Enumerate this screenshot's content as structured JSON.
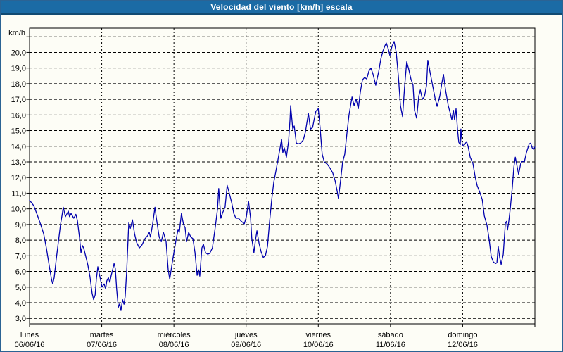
{
  "window": {
    "title": "Velocidad del viento [km/h] escala"
  },
  "colors": {
    "title_bar_bg": "#1b6ba5",
    "title_bar_edge": "#114a72",
    "window_border": "#2b6394",
    "page_bg": "#fdfdf6",
    "grid": "#000000",
    "axis": "#000000",
    "line": "#0000ad",
    "label_text": "#000000",
    "title_text": "#ffffff"
  },
  "chart_data": {
    "type": "line",
    "title": "Velocidad del viento [km/h] escala",
    "unit_label": "km/h",
    "grid": "dashed",
    "legend_position": "none",
    "ylim": [
      2.65,
      21.55
    ],
    "x_hours_max": 168,
    "yticks": [
      {
        "value": 3,
        "label": "3,0"
      },
      {
        "value": 4,
        "label": "4,0"
      },
      {
        "value": 5,
        "label": "5,0"
      },
      {
        "value": 6,
        "label": "6,0"
      },
      {
        "value": 7,
        "label": "7,0"
      },
      {
        "value": 8,
        "label": "8,0"
      },
      {
        "value": 9,
        "label": "9,0"
      },
      {
        "value": 10,
        "label": "10,0"
      },
      {
        "value": 11,
        "label": "11,0"
      },
      {
        "value": 12,
        "label": "12,0"
      },
      {
        "value": 13,
        "label": "13,0"
      },
      {
        "value": 14,
        "label": "14,0"
      },
      {
        "value": 15,
        "label": "15,0"
      },
      {
        "value": 16,
        "label": "16,0"
      },
      {
        "value": 17,
        "label": "17,0"
      },
      {
        "value": 18,
        "label": "18,0"
      },
      {
        "value": 19,
        "label": "19,0"
      },
      {
        "value": 20,
        "label": "20,0"
      },
      {
        "value": 21,
        "label": ""
      }
    ],
    "days": [
      {
        "label": "lunes",
        "date": "06/06/16"
      },
      {
        "label": "martes",
        "date": "07/06/16"
      },
      {
        "label": "miércoles",
        "date": "08/06/16"
      },
      {
        "label": "jueves",
        "date": "09/06/16"
      },
      {
        "label": "viernes",
        "date": "10/06/16"
      },
      {
        "label": "sábado",
        "date": "11/06/16"
      },
      {
        "label": "domingo",
        "date": "12/06/16"
      }
    ],
    "series": [
      {
        "name": "Velocidad del viento",
        "color": "#0000ad",
        "hours": [
          0,
          1.4,
          2.6,
          3.7,
          4.7,
          5.6,
          6.6,
          7.3,
          7.7,
          8.2,
          8.9,
          9.6,
          10.3,
          10.8,
          11.2,
          11.9,
          12.9,
          13.3,
          13.8,
          14.7,
          15.4,
          15.9,
          16.6,
          17.1,
          17.6,
          18,
          18.7,
          19.4,
          20.1,
          20.8,
          21.3,
          21.8,
          22.2,
          22.7,
          23.4,
          24.1,
          24.8,
          25.3,
          25.7,
          26.2,
          26.7,
          27.1,
          27.6,
          28.1,
          28.5,
          29,
          29.5,
          30,
          30.4,
          30.9,
          31.4,
          31.8,
          32.3,
          32.8,
          33,
          33.5,
          34.2,
          34.9,
          35.6,
          36.5,
          37.4,
          38.4,
          39.3,
          39.8,
          40.2,
          40.9,
          41.7,
          42.1,
          43.1,
          43.8,
          44.5,
          45.4,
          46.1,
          46.6,
          47.3,
          48,
          48.7,
          49.4,
          49.8,
          50.5,
          51.2,
          51.7,
          52.2,
          52.9,
          53.6,
          54.3,
          55,
          55.7,
          56.2,
          56.6,
          57.3,
          57.8,
          58.5,
          59.2,
          59.9,
          60.8,
          61.8,
          62.5,
          62.9,
          63.6,
          64.3,
          65,
          65.7,
          66.4,
          67.2,
          67.9,
          68.6,
          69.5,
          70.4,
          71.4,
          72.1,
          72.8,
          73.5,
          73.9,
          74.6,
          75.1,
          75.6,
          76.3,
          77,
          77.7,
          78.4,
          79.1,
          79.8,
          80.5,
          81.2,
          81.9,
          82.6,
          83.3,
          83.8,
          84.2,
          84.7,
          85.4,
          86.1,
          86.6,
          86.8,
          87.5,
          88,
          88.7,
          89.4,
          90.1,
          91,
          91.7,
          92.7,
          93.4,
          94.1,
          94.8,
          95.2,
          96,
          96.6,
          97.3,
          98,
          99,
          99.9,
          100.8,
          101.6,
          102.3,
          102.7,
          103.4,
          104.1,
          104.8,
          105.5,
          106.2,
          107.2,
          107.9,
          108.6,
          109.3,
          110,
          110.7,
          111.4,
          112.1,
          112.8,
          113.5,
          114.2,
          115.1,
          116.1,
          116.8,
          117.5,
          118.2,
          118.6,
          119.3,
          119.8,
          120.5,
          121.2,
          121.9,
          122.6,
          123.3,
          124,
          124.7,
          125.4,
          126.1,
          126.8,
          127.5,
          128,
          128.7,
          129.4,
          129.9,
          130.6,
          131.3,
          132,
          132.4,
          133.1,
          134.1,
          134.8,
          135.5,
          136.4,
          137.1,
          137.6,
          138.3,
          139.2,
          139.9,
          140.4,
          140.9,
          141.3,
          141.8,
          142.3,
          142.7,
          143.2,
          143.4,
          143.9,
          144.6,
          145.3,
          145.8,
          146.5,
          147.4,
          148.1,
          148.8,
          149.8,
          150.5,
          151.2,
          152.1,
          152.8,
          153.5,
          154.2,
          154.9,
          155.4,
          155.8,
          156.3,
          156.8,
          157.5,
          158.2,
          158.6,
          158.9,
          159.3,
          159.8,
          160.5,
          161,
          161.5,
          162.2,
          162.6,
          163.3,
          163.8,
          164.5,
          165.2,
          166.1,
          166.6,
          167.1,
          167.5,
          168
        ],
        "values": [
          10.55,
          10.2,
          9.6,
          9,
          8.4,
          7.5,
          6.3,
          5.5,
          5.2,
          5.6,
          6.8,
          7.9,
          9,
          9.6,
          10.1,
          9.5,
          9.85,
          9.5,
          9.7,
          9.4,
          9.65,
          9.25,
          8.2,
          7.2,
          7.65,
          7.5,
          6.95,
          6.4,
          5.65,
          4.6,
          4.2,
          4.5,
          5.5,
          6.3,
          5.65,
          5,
          5.2,
          4.9,
          5.4,
          5.6,
          5.3,
          5.7,
          6.1,
          6.5,
          6.2,
          4.8,
          3.7,
          3.95,
          3.5,
          4.2,
          3.9,
          4.4,
          6,
          8.3,
          9.1,
          8.75,
          9.3,
          8.4,
          7.85,
          7.5,
          7.7,
          8.1,
          8.3,
          8.5,
          8.2,
          9,
          10.1,
          9.5,
          8.2,
          7.9,
          8.5,
          7.9,
          6.1,
          5.5,
          6.4,
          7.2,
          8,
          8.7,
          8.5,
          9.7,
          9,
          8.8,
          7.9,
          8.5,
          8.2,
          8.1,
          7.2,
          5.75,
          6.1,
          5.7,
          7.5,
          7.75,
          7.2,
          7.1,
          7.15,
          7.5,
          8.9,
          10,
          11.3,
          9.4,
          9.8,
          10.1,
          11.5,
          11,
          10.4,
          9.7,
          9.4,
          9.4,
          9.2,
          9.05,
          9.5,
          10.5,
          9.4,
          8.1,
          7.2,
          8,
          8.6,
          7.8,
          7.25,
          6.9,
          7,
          7.6,
          9.2,
          10.55,
          11.7,
          12.4,
          13.15,
          13.9,
          14.45,
          13.6,
          13.9,
          13.3,
          14.3,
          15.7,
          16.6,
          15.1,
          15.3,
          14.2,
          14.15,
          14.2,
          14.4,
          14.9,
          16.1,
          15.1,
          15.2,
          15.9,
          16.25,
          16.4,
          15.2,
          13.5,
          13,
          12.85,
          12.6,
          12.3,
          11.8,
          11.1,
          10.65,
          11.8,
          13,
          13.5,
          14.8,
          16,
          17.15,
          16.6,
          17,
          16.4,
          17.5,
          18.25,
          18.4,
          18.3,
          18.8,
          19,
          18.6,
          17.9,
          18.8,
          19.6,
          20.1,
          20.45,
          20.6,
          20.2,
          19.8,
          20.4,
          20.7,
          20,
          18.5,
          16.6,
          15.9,
          17.8,
          19.4,
          18.9,
          18.3,
          17.9,
          16.3,
          15.8,
          17.2,
          17.6,
          17,
          17.2,
          17.9,
          19.5,
          18.8,
          17.8,
          17.1,
          16.55,
          17.2,
          18.05,
          18.6,
          17.6,
          16.6,
          16.1,
          15.7,
          16.3,
          15.7,
          16.4,
          15,
          14.25,
          14.1,
          15.1,
          14.05,
          14.1,
          14.3,
          14,
          13.3,
          12.9,
          12.1,
          11.5,
          11,
          10.6,
          9.55,
          8.95,
          8.05,
          6.95,
          6.6,
          6.5,
          6.55,
          7.6,
          6.9,
          6.45,
          7.1,
          9.1,
          9.2,
          8.65,
          9.15,
          10,
          11.35,
          12.65,
          13.3,
          12.6,
          12.2,
          12.9,
          13.05,
          13,
          13.6,
          14.15,
          14.2,
          13.9,
          13.8,
          13.95
        ]
      }
    ]
  }
}
